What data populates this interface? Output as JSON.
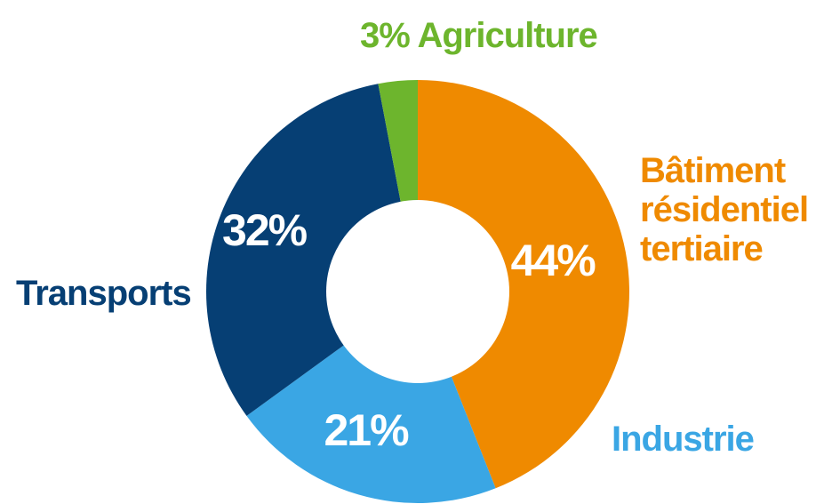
{
  "colors": {
    "batiment": "#ef8a00",
    "industrie": "#3aa6e4",
    "transports": "#063f74",
    "agriculture": "#6db52d"
  },
  "labels": {
    "agriculture": "3% Agriculture",
    "batiment_lines": [
      "Bâtiment",
      "résidentiel",
      "tertiaire"
    ],
    "industrie": "Industrie",
    "transports": "Transports"
  },
  "chart_data": {
    "type": "pie",
    "variant": "donut",
    "categories": [
      "Bâtiment résidentiel tertiaire",
      "Industrie",
      "Transports",
      "Agriculture"
    ],
    "values": [
      44,
      21,
      32,
      3
    ],
    "value_labels": [
      "44%",
      "21%",
      "32%",
      "3%"
    ],
    "title": "",
    "start_angle_deg": 0,
    "direction": "clockwise",
    "legend": "labels-outside"
  }
}
